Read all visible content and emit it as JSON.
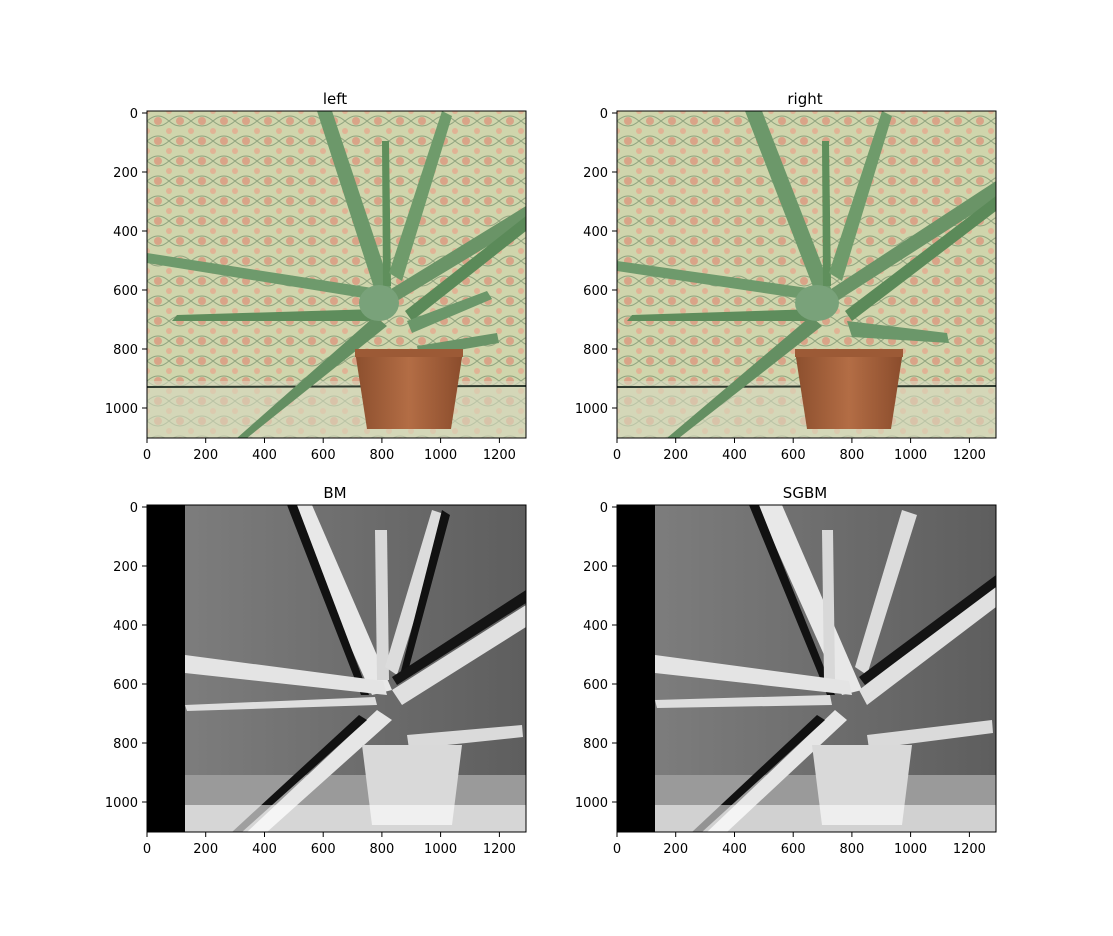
{
  "panels": [
    {
      "id": "left",
      "title": "left",
      "kind": "photo",
      "x_ticks": [
        "0",
        "200",
        "400",
        "600",
        "800",
        "1000",
        "1200"
      ],
      "y_ticks": [
        "0",
        "200",
        "400",
        "600",
        "800",
        "1000"
      ]
    },
    {
      "id": "right",
      "title": "right",
      "kind": "photo",
      "x_ticks": [
        "0",
        "200",
        "400",
        "600",
        "800",
        "1000",
        "1200"
      ],
      "y_ticks": [
        "0",
        "200",
        "400",
        "600",
        "800",
        "1000"
      ]
    },
    {
      "id": "bm",
      "title": "BM",
      "kind": "disparity",
      "x_ticks": [
        "0",
        "200",
        "400",
        "600",
        "800",
        "1000",
        "1200"
      ],
      "y_ticks": [
        "0",
        "200",
        "400",
        "600",
        "800",
        "1000"
      ]
    },
    {
      "id": "sgbm",
      "title": "SGBM",
      "kind": "disparity",
      "x_ticks": [
        "0",
        "200",
        "400",
        "600",
        "800",
        "1000",
        "1200"
      ],
      "y_ticks": [
        "0",
        "200",
        "400",
        "600",
        "800",
        "1000"
      ]
    }
  ],
  "colors": {
    "photo_background": "#c9cfa6",
    "leaf": "#6f9a6a",
    "leaf_dark": "#4f7a50",
    "pot": "#a8643e",
    "disparity_background": "#6a6a6a",
    "disparity_bright": "#e6e6e6"
  }
}
